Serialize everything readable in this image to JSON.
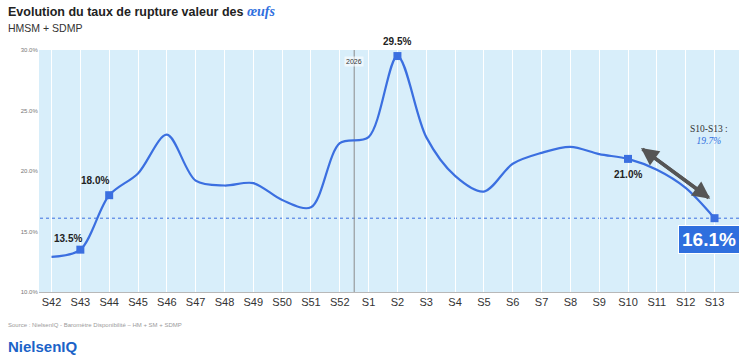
{
  "chart_data": {
    "type": "line",
    "title": "Evolution du taux de rupture valeur des œufs",
    "subtitle": "HMSM + SDMP",
    "categories": [
      "S42",
      "S43",
      "S44",
      "S45",
      "S46",
      "S47",
      "S48",
      "S49",
      "S50",
      "S51",
      "S52",
      "S1",
      "S2",
      "S3",
      "S4",
      "S5",
      "S6",
      "S7",
      "S8",
      "S9",
      "S10",
      "S11",
      "S12",
      "S13"
    ],
    "values": [
      12.9,
      13.5,
      18.0,
      19.8,
      23.0,
      19.2,
      18.8,
      19.0,
      17.6,
      17.0,
      22.3,
      22.8,
      29.5,
      22.8,
      19.6,
      18.3,
      20.6,
      21.5,
      22.0,
      21.4,
      21.0,
      20.1,
      18.6,
      16.1
    ],
    "color": "#3b6fe0",
    "ylim": [
      10,
      30
    ],
    "yticks": [
      {
        "value": 10,
        "label": "10.0%"
      },
      {
        "value": 15,
        "label": "15.0%"
      },
      {
        "value": 20,
        "label": "20.0%"
      },
      {
        "value": 25,
        "label": "25.0%"
      },
      {
        "value": 30,
        "label": "30.0%"
      }
    ],
    "grid": true,
    "marker": "square",
    "point_labels": [
      {
        "category": "S43",
        "label": "13.5%"
      },
      {
        "category": "S44",
        "label": "18.0%"
      },
      {
        "category": "S2",
        "label": "29.5%"
      },
      {
        "category": "S10",
        "label": "21.0%"
      },
      {
        "category": "S13",
        "label": "16.1%"
      }
    ],
    "reference_line": {
      "value": 16.1
    },
    "year_divider": {
      "label": "2026",
      "before": "S1"
    },
    "period_average": {
      "from": "S10",
      "to": "S13",
      "label": "S10-S13 :",
      "value": 19.7,
      "value_label": "19.7%"
    },
    "source": "Source : NielsenIQ - Baromètre Disponibilité – HM + SM + SDMP",
    "logo": "NielsenIQ"
  }
}
